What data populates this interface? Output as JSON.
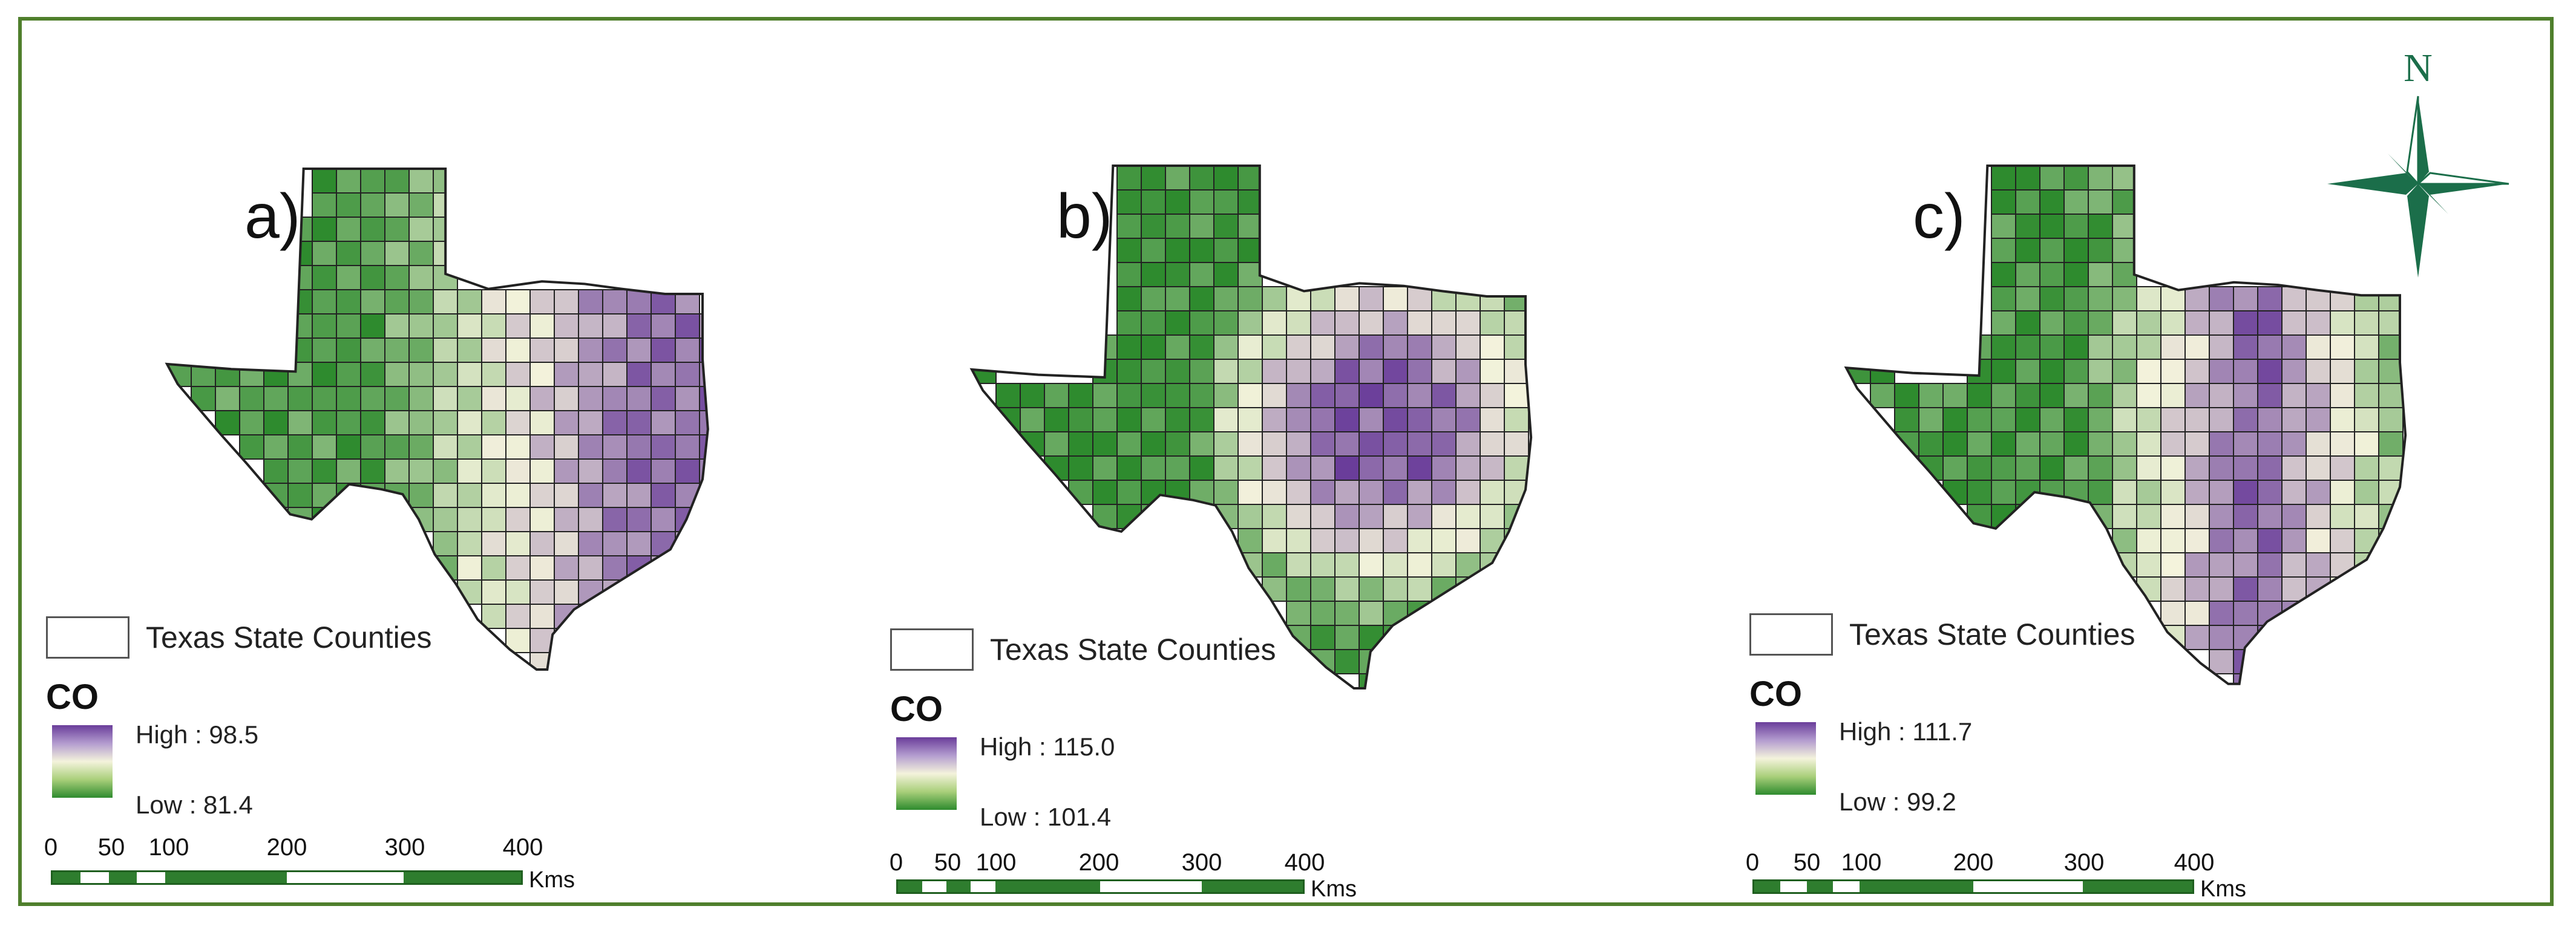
{
  "figure": {
    "panels": [
      {
        "label": "a)",
        "legend": {
          "layer": "Texas State Counties",
          "variable": "CO",
          "high": "High : 98.5",
          "low": "Low : 81.4"
        },
        "scale": {
          "ticks": [
            "0",
            "50",
            "100",
            "200",
            "300",
            "400"
          ],
          "unit": "Kms"
        },
        "pattern": "east_high"
      },
      {
        "label": "b)",
        "legend": {
          "layer": "Texas State Counties",
          "variable": "CO",
          "high": "High : 115.0",
          "low": "Low : 101.4"
        },
        "scale": {
          "ticks": [
            "0",
            "50",
            "100",
            "200",
            "300",
            "400"
          ],
          "unit": "Kms"
        },
        "pattern": "center_east_high"
      },
      {
        "label": "c)",
        "legend": {
          "layer": "Texas State Counties",
          "variable": "CO",
          "high": "High : 111.7",
          "low": "Low : 99.2"
        },
        "scale": {
          "ticks": [
            "0",
            "50",
            "100",
            "200",
            "300",
            "400"
          ],
          "unit": "Kms"
        },
        "pattern": "central_band_high"
      }
    ],
    "north_label": "N",
    "colors": {
      "frame": "#4f7f2c",
      "high": "#6a3d9a",
      "mid": "#f4f3dc",
      "low": "#2e8b2e",
      "compass": "#1b6e4a"
    }
  }
}
